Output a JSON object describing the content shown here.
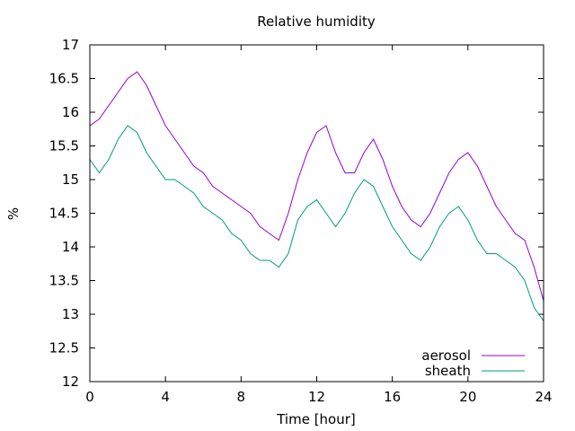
{
  "chart_data": {
    "type": "line",
    "title": "Relative humidity",
    "xlabel": "Time [hour]",
    "ylabel": "%",
    "xlim": [
      0,
      24
    ],
    "ylim": [
      12,
      17
    ],
    "x_ticks": [
      0,
      4,
      8,
      12,
      16,
      20,
      24
    ],
    "y_ticks": [
      12,
      12.5,
      13,
      13.5,
      14,
      14.5,
      15,
      15.5,
      16,
      16.5,
      17
    ],
    "grid": false,
    "legend_position": "bottom-right",
    "x_step_hours": 0.5,
    "series": [
      {
        "name": "aerosol",
        "color": "#9400d3",
        "values": [
          15.8,
          15.9,
          16.1,
          16.3,
          16.5,
          16.6,
          16.4,
          16.1,
          15.8,
          15.6,
          15.4,
          15.2,
          15.1,
          14.9,
          14.8,
          14.7,
          14.6,
          14.5,
          14.3,
          14.2,
          14.1,
          14.5,
          15.0,
          15.4,
          15.7,
          15.8,
          15.4,
          15.1,
          15.1,
          15.4,
          15.6,
          15.3,
          14.9,
          14.6,
          14.4,
          14.3,
          14.5,
          14.8,
          15.1,
          15.3,
          15.4,
          15.2,
          14.9,
          14.6,
          14.4,
          14.2,
          14.1,
          13.7,
          13.2
        ]
      },
      {
        "name": "sheath",
        "color": "#009e73",
        "values": [
          15.3,
          15.1,
          15.3,
          15.6,
          15.8,
          15.7,
          15.4,
          15.2,
          15.0,
          15.0,
          14.9,
          14.8,
          14.6,
          14.5,
          14.4,
          14.2,
          14.1,
          13.9,
          13.8,
          13.8,
          13.7,
          13.9,
          14.4,
          14.6,
          14.7,
          14.5,
          14.3,
          14.5,
          14.8,
          15.0,
          14.9,
          14.6,
          14.3,
          14.1,
          13.9,
          13.8,
          14.0,
          14.3,
          14.5,
          14.6,
          14.4,
          14.1,
          13.9,
          13.9,
          13.8,
          13.7,
          13.5,
          13.1,
          12.9
        ]
      }
    ]
  }
}
